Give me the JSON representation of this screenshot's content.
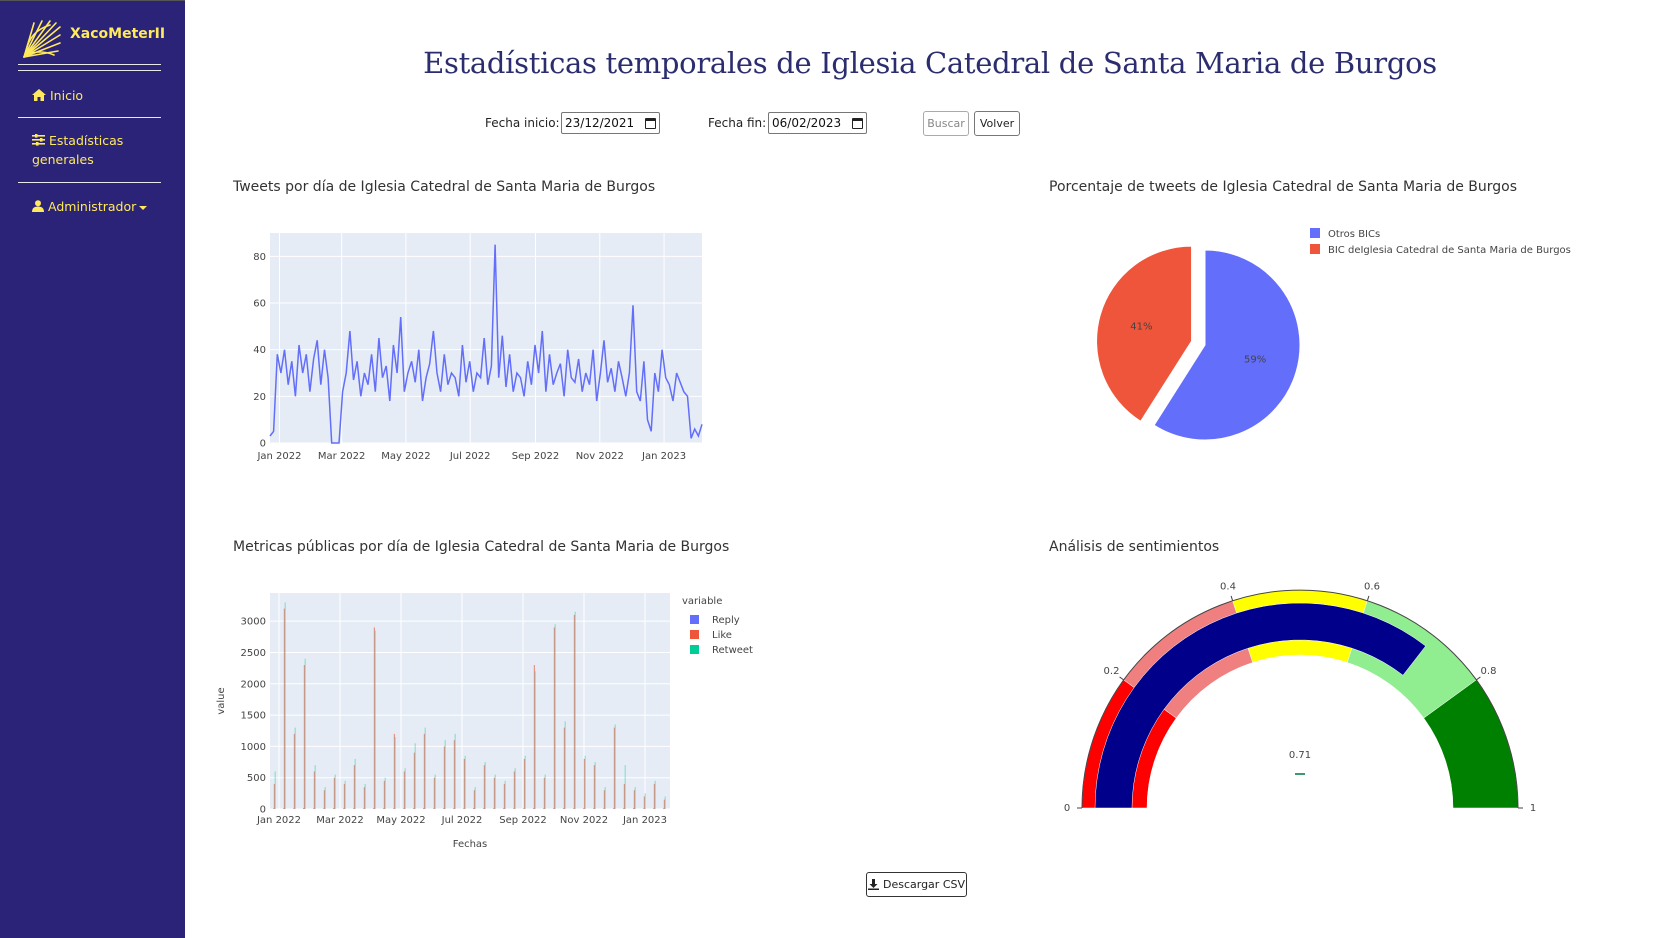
{
  "sidebar": {
    "brand": "XacoMeterII",
    "items": [
      {
        "label": "Inicio",
        "icon": "home-icon"
      },
      {
        "label": "Estadísticas generales",
        "line1": "Estadísticas",
        "line2": "generales",
        "icon": "sliders-icon"
      },
      {
        "label": "Administrador",
        "icon": "user-icon"
      }
    ]
  },
  "page": {
    "title": "Estadísticas temporales de Iglesia Catedral de Santa Maria de Burgos"
  },
  "filters": {
    "start_label": "Fecha inicio:",
    "start_value": "23/12/2021",
    "end_label": "Fecha fin:",
    "end_value": "06/02/2023",
    "search_label": "Buscar",
    "back_label": "Volver"
  },
  "charts": {
    "tweets_title": "Tweets por día de Iglesia Catedral de Santa Maria de Burgos",
    "pie_title": "Porcentaje de tweets de Iglesia Catedral de Santa Maria de Burgos",
    "metrics_title": "Metricas públicas por día de Iglesia Catedral de Santa Maria de Burgos",
    "sentiment_title": "Análisis de sentimientos"
  },
  "download": {
    "label": "Descargar CSV"
  },
  "colors": {
    "sidebar": "#2a2378",
    "accent": "#ffe95c",
    "plot_bg": "#e5ecf6",
    "reply": "#636efa",
    "like": "#ef553b",
    "retweet": "#00cc96",
    "gauge_bar": "#00008b"
  },
  "chart_data": [
    {
      "type": "line",
      "title": "Tweets por día de Iglesia Catedral de Santa Maria de Burgos",
      "x_ticks": [
        "Jan 2022",
        "Mar 2022",
        "May 2022",
        "Jul 2022",
        "Sep 2022",
        "Nov 2022",
        "Jan 2023"
      ],
      "y_ticks": [
        0,
        20,
        40,
        60,
        80
      ],
      "ylim": [
        0,
        90
      ],
      "xlim": [
        "2021-12-23",
        "2023-02-06"
      ],
      "series": [
        {
          "values": [
            3,
            5,
            38,
            30,
            40,
            25,
            35,
            20,
            42,
            30,
            38,
            22,
            36,
            44,
            25,
            40,
            28,
            0,
            0,
            0,
            22,
            30,
            48,
            27,
            35,
            20,
            30,
            25,
            38,
            22,
            45,
            28,
            33,
            18,
            42,
            30,
            54,
            22,
            30,
            35,
            26,
            40,
            18,
            28,
            34,
            48,
            30,
            22,
            38,
            25,
            30,
            28,
            20,
            42,
            26,
            35,
            22,
            30,
            28,
            45,
            25,
            33,
            85,
            28,
            46,
            24,
            38,
            22,
            30,
            28,
            20,
            35,
            25,
            42,
            30,
            48,
            22,
            38,
            25,
            30,
            34,
            20,
            40,
            28,
            26,
            36,
            22,
            30,
            25,
            40,
            18,
            30,
            44,
            26,
            32,
            22,
            35,
            28,
            20,
            30,
            59,
            22,
            18,
            35,
            10,
            5,
            30,
            22,
            40,
            28,
            25,
            18,
            30,
            26,
            22,
            20,
            2,
            6,
            3,
            8
          ]
        }
      ]
    },
    {
      "type": "pie",
      "title": "Porcentaje de tweets de Iglesia Catedral de Santa Maria de Burgos",
      "labels": [
        "Otros BICs",
        "BIC deIglesia Catedral de Santa Maria de Burgos"
      ],
      "values": [
        59,
        41
      ],
      "display": [
        "59%",
        "41%"
      ],
      "legend": "top-right"
    },
    {
      "type": "bar",
      "title": "Metricas públicas por día de Iglesia Catedral de Santa Maria de Burgos",
      "xlabel": "Fechas",
      "ylabel": "value",
      "legend_title": "variable",
      "x_ticks": [
        "Jan 2022",
        "Mar 2022",
        "May 2022",
        "Jul 2022",
        "Sep 2022",
        "Nov 2022",
        "Jan 2023"
      ],
      "y_ticks": [
        0,
        500,
        1000,
        1500,
        2000,
        2500,
        3000
      ],
      "ylim": [
        0,
        3450
      ],
      "series": [
        {
          "name": "Reply",
          "values": [
            10,
            12,
            8,
            15,
            10,
            9,
            14,
            11,
            10,
            8,
            13,
            12,
            9,
            10,
            11,
            14,
            8,
            12,
            10,
            9,
            15,
            11,
            10,
            12,
            8,
            9,
            14,
            10,
            11,
            13,
            9,
            12,
            10,
            8,
            11,
            12,
            14,
            9,
            10,
            11
          ]
        },
        {
          "name": "Like",
          "values": [
            400,
            3200,
            1200,
            2300,
            600,
            300,
            500,
            400,
            700,
            350,
            2900,
            450,
            1200,
            600,
            900,
            1200,
            500,
            1000,
            1100,
            800,
            300,
            700,
            500,
            400,
            600,
            800,
            2300,
            500,
            2900,
            1300,
            3100,
            800,
            700,
            300,
            1300,
            400,
            300,
            200,
            400,
            150
          ]
        },
        {
          "name": "Retweet",
          "values": [
            600,
            3300,
            1300,
            2400,
            700,
            350,
            550,
            450,
            800,
            400,
            2850,
            500,
            1150,
            650,
            1050,
            1300,
            550,
            1100,
            1200,
            850,
            350,
            750,
            550,
            450,
            650,
            850,
            2200,
            550,
            2950,
            1400,
            3150,
            850,
            750,
            350,
            1350,
            700,
            350,
            250,
            450,
            200
          ]
        }
      ]
    },
    {
      "type": "gauge",
      "title": "Análisis de sentimientos",
      "value": 0.71,
      "display": "0.71",
      "range": [
        0,
        1
      ],
      "ticks": [
        "0",
        "0.2",
        "0.4",
        "0.6",
        "0.8",
        "1"
      ],
      "steps": [
        {
          "range": [
            0,
            0.2
          ],
          "color": "#ff0000"
        },
        {
          "range": [
            0.2,
            0.4
          ],
          "color": "#f08080"
        },
        {
          "range": [
            0.4,
            0.6
          ],
          "color": "#ffff00"
        },
        {
          "range": [
            0.6,
            0.8
          ],
          "color": "#90ee90"
        },
        {
          "range": [
            0.8,
            1
          ],
          "color": "#008000"
        }
      ]
    }
  ]
}
